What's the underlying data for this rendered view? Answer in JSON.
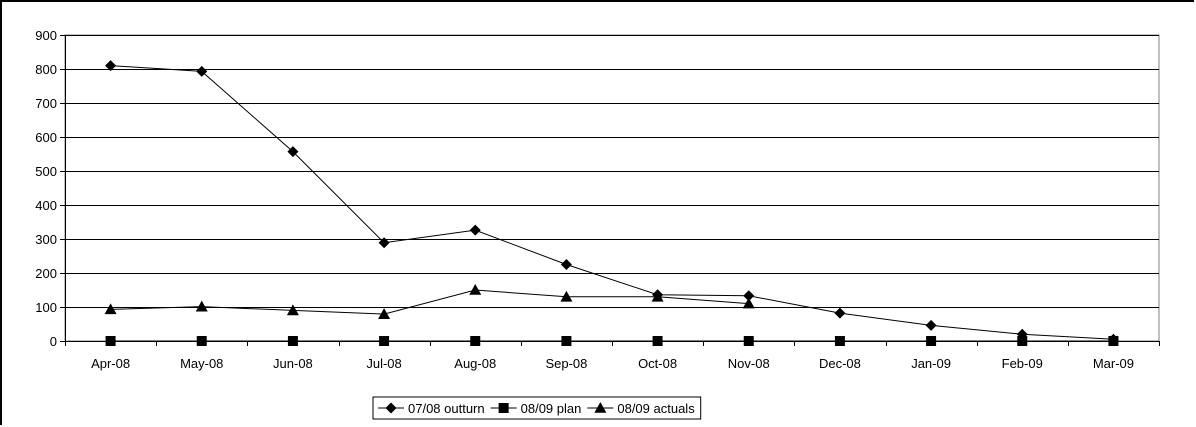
{
  "chart_data": {
    "type": "line",
    "categories": [
      "Apr-08",
      "May-08",
      "Jun-08",
      "Jul-08",
      "Aug-08",
      "Sep-08",
      "Oct-08",
      "Nov-08",
      "Dec-08",
      "Jan-09",
      "Feb-09",
      "Mar-09"
    ],
    "ylim": [
      0,
      900
    ],
    "yticks": [
      0,
      100,
      200,
      300,
      400,
      500,
      600,
      700,
      800,
      900
    ],
    "ytick_labels": [
      "0",
      "100",
      "200",
      "300",
      "400",
      "500",
      "600",
      "700",
      "800",
      "900"
    ],
    "grid": "horizontal",
    "legend_position": "bottom",
    "series": [
      {
        "name": "07/08 outturn",
        "marker": "diamond",
        "color": "#000000",
        "values": [
          810,
          793,
          557,
          289,
          326,
          225,
          136,
          133,
          82,
          46,
          20,
          5
        ]
      },
      {
        "name": "08/09 plan",
        "marker": "square",
        "color": "#000000",
        "values": [
          0,
          0,
          0,
          0,
          0,
          0,
          0,
          0,
          0,
          0,
          0,
          0
        ]
      },
      {
        "name": "08/09 actuals",
        "marker": "triangle",
        "color": "#000000",
        "values": [
          93,
          101,
          90,
          79,
          150,
          130,
          130,
          110,
          null,
          null,
          null,
          null
        ]
      }
    ]
  }
}
